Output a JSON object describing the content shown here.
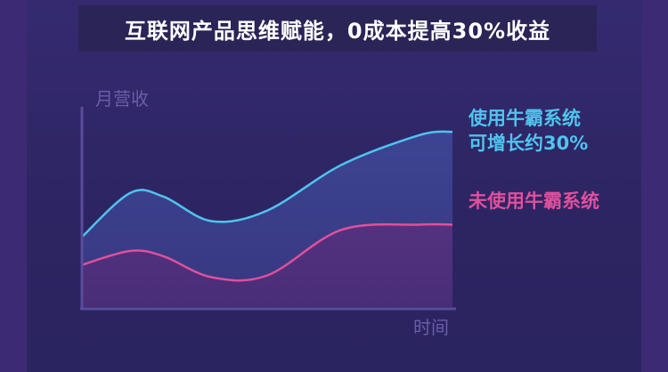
{
  "title": "互联网产品思维赋能，0成本提高30%收益",
  "colors": {
    "with_system": "#4fc4ee",
    "without_system": "#e0509c",
    "axis": "#5a4c9c",
    "axis_label": "#6b5ca8"
  },
  "chart_data": {
    "type": "area",
    "ylabel": "月营收",
    "xlabel": "时间",
    "series": [
      {
        "name_lines": [
          "使用牛霸系统",
          "可增长约30%"
        ],
        "color": "#4fc4ee",
        "points": [
          [
            0,
            40
          ],
          [
            0.13,
            65
          ],
          [
            0.22,
            63
          ],
          [
            0.35,
            49
          ],
          [
            0.5,
            55
          ],
          [
            0.7,
            81
          ],
          [
            0.91,
            98
          ],
          [
            1.0,
            100
          ]
        ]
      },
      {
        "name_lines": [
          "未使用牛霸系统"
        ],
        "color": "#e0509c",
        "points": [
          [
            0,
            24
          ],
          [
            0.13,
            32
          ],
          [
            0.22,
            29
          ],
          [
            0.35,
            17
          ],
          [
            0.5,
            18
          ],
          [
            0.7,
            44
          ],
          [
            0.91,
            47
          ],
          [
            1.0,
            47
          ]
        ]
      }
    ]
  }
}
